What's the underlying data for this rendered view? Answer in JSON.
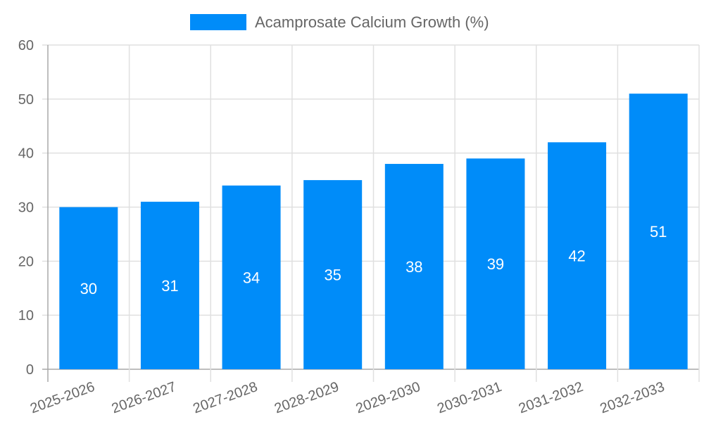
{
  "chart_data": {
    "type": "bar",
    "title": "",
    "legend": [
      {
        "label": "Acamprosate Calcium Growth (%)",
        "color": "#008cf9"
      }
    ],
    "legend_position": "top",
    "categories": [
      "2025-2026",
      "2026-2027",
      "2027-2028",
      "2028-2029",
      "2029-2030",
      "2030-2031",
      "2031-2032",
      "2032-2033"
    ],
    "series": [
      {
        "name": "Acamprosate Calcium Growth (%)",
        "values": [
          30,
          31,
          34,
          35,
          38,
          39,
          42,
          51
        ]
      }
    ],
    "xlabel": "",
    "ylabel": "",
    "ylim": [
      0,
      60
    ],
    "yticks": [
      0,
      10,
      20,
      30,
      40,
      50,
      60
    ],
    "grid": true,
    "data_labels": true,
    "bar_color": "#008cf9"
  }
}
